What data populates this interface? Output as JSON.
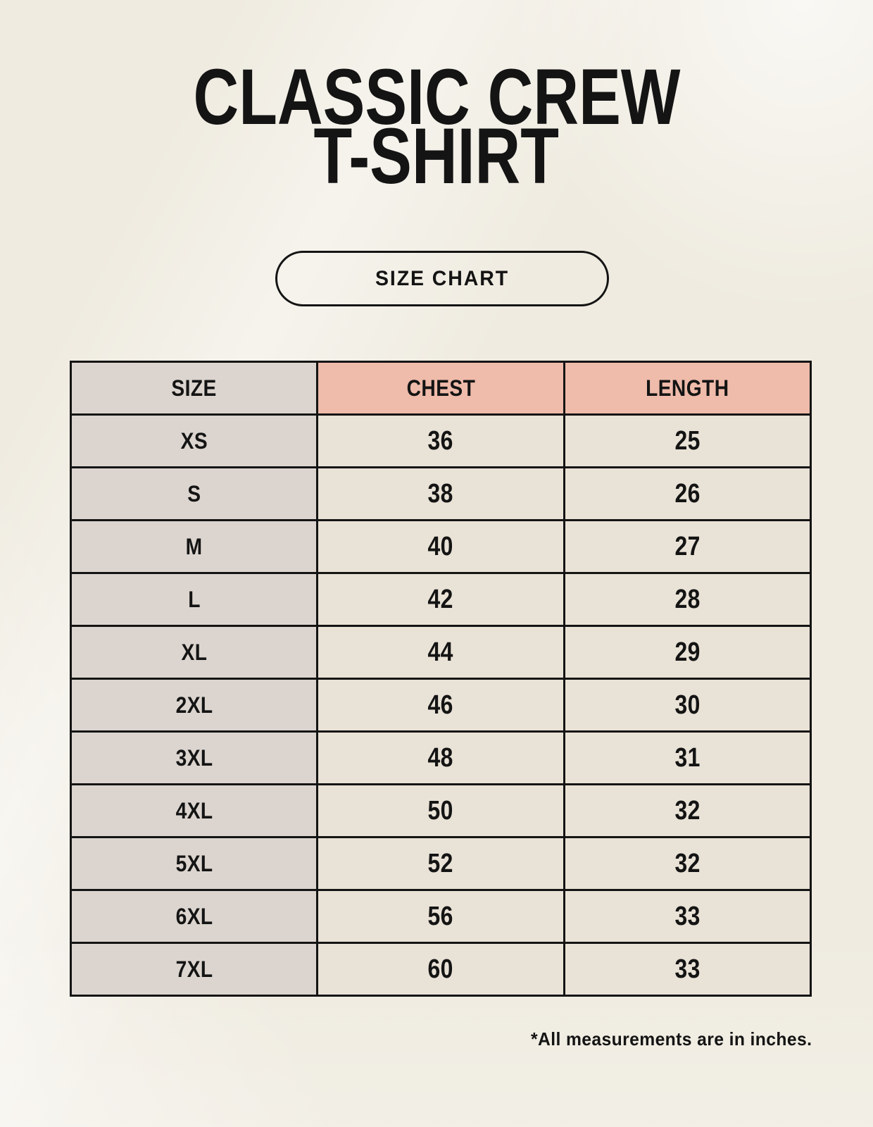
{
  "header": {
    "title_line1": "CLASSIC CREW",
    "title_line2": "T-SHIRT"
  },
  "size_chart_button": {
    "label": "SIZE CHART"
  },
  "size_chart": {
    "columns": [
      "SIZE",
      "CHEST",
      "LENGTH"
    ],
    "rows": [
      {
        "size": "XS",
        "chest": "36",
        "length": "25"
      },
      {
        "size": "S",
        "chest": "38",
        "length": "26"
      },
      {
        "size": "M",
        "chest": "40",
        "length": "27"
      },
      {
        "size": "L",
        "chest": "42",
        "length": "28"
      },
      {
        "size": "XL",
        "chest": "44",
        "length": "29"
      },
      {
        "size": "2XL",
        "chest": "46",
        "length": "30"
      },
      {
        "size": "3XL",
        "chest": "48",
        "length": "31"
      },
      {
        "size": "4XL",
        "chest": "50",
        "length": "32"
      },
      {
        "size": "5XL",
        "chest": "52",
        "length": "32"
      },
      {
        "size": "6XL",
        "chest": "56",
        "length": "33"
      },
      {
        "size": "7XL",
        "chest": "60",
        "length": "33"
      }
    ]
  },
  "footnote": "*All measurements are in inches.",
  "colors": {
    "background": "#efebe0",
    "header_accent": "#efbbaa",
    "size_column_bg": "#dcd5cf",
    "cell_bg": "#e9e2d6",
    "border": "#141414",
    "text": "#141414"
  },
  "chart_data": {
    "type": "table",
    "title": "CLASSIC CREW T-SHIRT — SIZE CHART",
    "columns": [
      "SIZE",
      "CHEST",
      "LENGTH"
    ],
    "rows": [
      [
        "XS",
        36,
        25
      ],
      [
        "S",
        38,
        26
      ],
      [
        "M",
        40,
        27
      ],
      [
        "L",
        42,
        28
      ],
      [
        "XL",
        44,
        29
      ],
      [
        "2XL",
        46,
        30
      ],
      [
        "3XL",
        48,
        31
      ],
      [
        "4XL",
        50,
        32
      ],
      [
        "5XL",
        52,
        32
      ],
      [
        "6XL",
        56,
        33
      ],
      [
        "7XL",
        60,
        33
      ]
    ],
    "units": "inches"
  }
}
